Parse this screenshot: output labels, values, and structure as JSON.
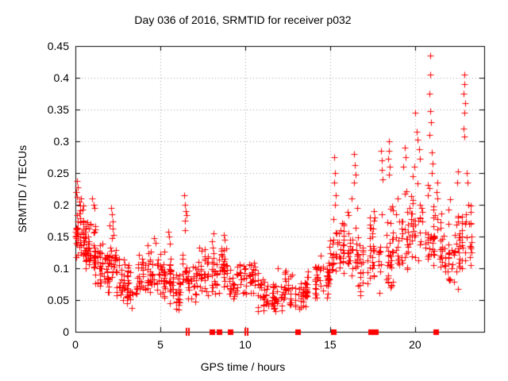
{
  "chart_data": {
    "type": "scatter",
    "title": "Day 036 of 2016, SRMTID for receiver p032",
    "xlabel": "GPS time / hours",
    "ylabel": "SRMTID / TECUs",
    "xlim": [
      0,
      24.07
    ],
    "ylim": [
      0,
      0.45
    ],
    "x_ticks": [
      0,
      5,
      10,
      15,
      20
    ],
    "x_tick_labels": [
      "0",
      "5",
      "10",
      "15",
      "20"
    ],
    "y_ticks": [
      0,
      0.05,
      0.1,
      0.15,
      0.2,
      0.25,
      0.3,
      0.35,
      0.4,
      0.45
    ],
    "y_tick_labels": [
      "0",
      "0.05",
      "0.1",
      "0.15",
      "0.2",
      "0.25",
      "0.3",
      "0.35",
      "0.4",
      "0.45"
    ],
    "grid": true,
    "legend_position": "none",
    "marker": "plus",
    "marker_color": "#ff0000",
    "grid_color": "#a6a6a6",
    "axis_color": "#000000",
    "background_color": "#ffffff",
    "series_name": "SRMTID",
    "clusters_format": [
      "hour_start",
      "hour_end",
      "n_points",
      "value_min",
      "value_max",
      "value_mode"
    ],
    "clusters": [
      [
        0.0,
        0.2,
        20,
        0.1,
        0.24,
        0.16
      ],
      [
        0.2,
        0.5,
        28,
        0.11,
        0.22,
        0.15
      ],
      [
        0.5,
        0.8,
        30,
        0.09,
        0.18,
        0.13
      ],
      [
        0.8,
        1.15,
        28,
        0.09,
        0.18,
        0.125
      ],
      [
        1.15,
        1.6,
        26,
        0.06,
        0.16,
        0.11
      ],
      [
        1.6,
        2.0,
        24,
        0.04,
        0.14,
        0.09
      ],
      [
        2.0,
        2.4,
        22,
        0.08,
        0.19,
        0.125
      ],
      [
        2.4,
        2.95,
        30,
        0.03,
        0.13,
        0.07
      ],
      [
        2.95,
        3.6,
        30,
        0.035,
        0.115,
        0.07
      ],
      [
        3.6,
        4.2,
        28,
        0.04,
        0.13,
        0.08
      ],
      [
        4.2,
        4.75,
        28,
        0.04,
        0.145,
        0.08
      ],
      [
        4.75,
        5.3,
        30,
        0.045,
        0.135,
        0.085
      ],
      [
        5.3,
        5.9,
        28,
        0.04,
        0.155,
        0.08
      ],
      [
        5.9,
        6.3,
        22,
        0.03,
        0.1,
        0.06
      ],
      [
        6.3,
        6.6,
        16,
        0.05,
        0.21,
        0.1
      ],
      [
        6.6,
        7.2,
        26,
        0.04,
        0.12,
        0.07
      ],
      [
        7.2,
        7.9,
        32,
        0.05,
        0.145,
        0.095
      ],
      [
        7.9,
        8.35,
        22,
        0.05,
        0.15,
        0.09
      ],
      [
        8.35,
        9.0,
        30,
        0.05,
        0.15,
        0.105
      ],
      [
        9.0,
        9.65,
        24,
        0.04,
        0.11,
        0.07
      ],
      [
        9.65,
        10.15,
        20,
        0.05,
        0.12,
        0.08
      ],
      [
        10.15,
        10.75,
        26,
        0.05,
        0.125,
        0.085
      ],
      [
        10.75,
        11.45,
        30,
        0.03,
        0.09,
        0.055
      ],
      [
        11.45,
        12.15,
        30,
        0.025,
        0.085,
        0.05
      ],
      [
        12.15,
        12.85,
        30,
        0.03,
        0.1,
        0.065
      ],
      [
        12.85,
        13.55,
        26,
        0.03,
        0.085,
        0.055
      ],
      [
        13.55,
        14.25,
        30,
        0.04,
        0.11,
        0.07
      ],
      [
        14.25,
        14.95,
        30,
        0.05,
        0.13,
        0.09
      ],
      [
        14.95,
        15.45,
        26,
        0.07,
        0.2,
        0.125
      ],
      [
        15.45,
        16.1,
        30,
        0.08,
        0.22,
        0.13
      ],
      [
        16.1,
        16.65,
        26,
        0.07,
        0.22,
        0.13
      ],
      [
        16.65,
        17.25,
        24,
        0.05,
        0.17,
        0.1
      ],
      [
        17.25,
        17.95,
        34,
        0.06,
        0.2,
        0.12
      ],
      [
        17.95,
        18.75,
        36,
        0.05,
        0.22,
        0.13
      ],
      [
        18.75,
        19.65,
        36,
        0.08,
        0.25,
        0.14
      ],
      [
        19.65,
        20.45,
        36,
        0.1,
        0.26,
        0.16
      ],
      [
        20.45,
        21.1,
        30,
        0.1,
        0.26,
        0.15
      ],
      [
        21.1,
        21.6,
        24,
        0.08,
        0.235,
        0.14
      ],
      [
        21.6,
        22.65,
        48,
        0.065,
        0.22,
        0.125
      ],
      [
        22.65,
        23.35,
        26,
        0.09,
        0.22,
        0.14
      ]
    ],
    "outlier_points": [
      [
        0.08,
        0.238
      ],
      [
        0.12,
        0.228
      ],
      [
        0.05,
        0.22
      ],
      [
        1.0,
        0.21
      ],
      [
        1.06,
        0.2
      ],
      [
        1.1,
        0.195
      ],
      [
        2.1,
        0.195
      ],
      [
        2.15,
        0.185
      ],
      [
        4.65,
        0.148
      ],
      [
        4.7,
        0.14
      ],
      [
        5.45,
        0.158
      ],
      [
        5.5,
        0.15
      ],
      [
        6.42,
        0.215
      ],
      [
        6.45,
        0.2
      ],
      [
        6.48,
        0.19
      ],
      [
        6.44,
        0.175
      ],
      [
        8.12,
        0.155
      ],
      [
        8.75,
        0.152
      ],
      [
        8.8,
        0.145
      ],
      [
        11.9,
        0.1
      ],
      [
        15.25,
        0.275
      ],
      [
        15.3,
        0.25
      ],
      [
        15.22,
        0.235
      ],
      [
        15.35,
        0.215
      ],
      [
        15.28,
        0.2
      ],
      [
        16.42,
        0.28
      ],
      [
        16.45,
        0.262
      ],
      [
        16.5,
        0.248
      ],
      [
        16.4,
        0.235
      ],
      [
        17.58,
        0.19
      ],
      [
        17.62,
        0.18
      ],
      [
        17.98,
        0.285
      ],
      [
        18.02,
        0.27
      ],
      [
        18.06,
        0.255
      ],
      [
        18.1,
        0.24
      ],
      [
        18.44,
        0.3
      ],
      [
        18.47,
        0.285
      ],
      [
        18.42,
        0.272
      ],
      [
        18.5,
        0.26
      ],
      [
        18.46,
        0.248
      ],
      [
        19.38,
        0.29
      ],
      [
        19.42,
        0.275
      ],
      [
        19.32,
        0.26
      ],
      [
        20.02,
        0.345
      ],
      [
        20.08,
        0.315
      ],
      [
        20.15,
        0.302
      ],
      [
        20.22,
        0.288
      ],
      [
        20.28,
        0.272
      ],
      [
        19.95,
        0.26
      ],
      [
        20.88,
        0.435
      ],
      [
        20.9,
        0.405
      ],
      [
        20.86,
        0.375
      ],
      [
        20.9,
        0.347
      ],
      [
        20.94,
        0.33
      ],
      [
        20.84,
        0.31
      ],
      [
        21.0,
        0.282
      ],
      [
        21.04,
        0.265
      ],
      [
        20.98,
        0.25
      ],
      [
        21.32,
        0.235
      ],
      [
        21.28,
        0.22
      ],
      [
        22.55,
        0.252
      ],
      [
        22.5,
        0.235
      ],
      [
        22.88,
        0.405
      ],
      [
        22.9,
        0.39
      ],
      [
        22.86,
        0.375
      ],
      [
        22.93,
        0.36
      ],
      [
        22.88,
        0.345
      ],
      [
        22.84,
        0.32
      ],
      [
        22.9,
        0.308
      ],
      [
        23.05,
        0.25
      ],
      [
        23.1,
        0.235
      ],
      [
        23.15,
        0.2
      ],
      [
        23.2,
        0.17
      ],
      [
        23.3,
        0.15
      ]
    ],
    "baseline_markers": {
      "squares_hours": [
        8.05,
        8.45,
        9.1,
        13.1,
        15.2,
        17.4,
        17.65,
        21.2
      ],
      "bars_hours": [
        6.55,
        6.67,
        10.0,
        10.15
      ]
    }
  }
}
